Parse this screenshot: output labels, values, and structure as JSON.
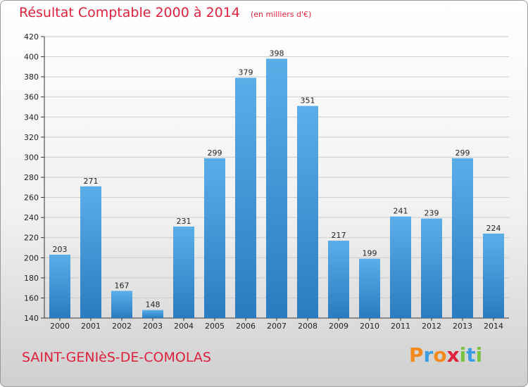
{
  "chart_data": {
    "type": "bar",
    "title": "Résultat Comptable 2000 à 2014",
    "subtitle": "(en milliers d'€)",
    "categories": [
      "2000",
      "2001",
      "2002",
      "2003",
      "2004",
      "2005",
      "2006",
      "2007",
      "2008",
      "2009",
      "2010",
      "2011",
      "2012",
      "2013",
      "2014"
    ],
    "values": [
      203,
      271,
      167,
      148,
      231,
      299,
      379,
      398,
      351,
      217,
      199,
      241,
      239,
      299,
      224
    ],
    "ylim": [
      140,
      420
    ],
    "yticks": [
      140,
      160,
      180,
      200,
      220,
      240,
      260,
      280,
      300,
      320,
      340,
      360,
      380,
      400,
      420
    ],
    "grid": true,
    "legend": "none",
    "colors": {
      "bar_top": "#5aaee8",
      "bar_bottom": "#2a7cc0",
      "grid": "#cccccc",
      "title": "#e0213e"
    }
  },
  "footer": {
    "commune": "SAINT-GENIèS-DE-COMOLAS",
    "brand_letters": [
      {
        "ch": "P",
        "color": "#f28a1c"
      },
      {
        "ch": "r",
        "color": "#3a9ee0"
      },
      {
        "ch": "o",
        "color": "#f28a1c"
      },
      {
        "ch": "x",
        "color": "#e0213e"
      },
      {
        "ch": "i",
        "color": "#7cc243"
      },
      {
        "ch": "t",
        "color": "#3a9ee0"
      },
      {
        "ch": "i",
        "color": "#7cc243"
      }
    ]
  }
}
